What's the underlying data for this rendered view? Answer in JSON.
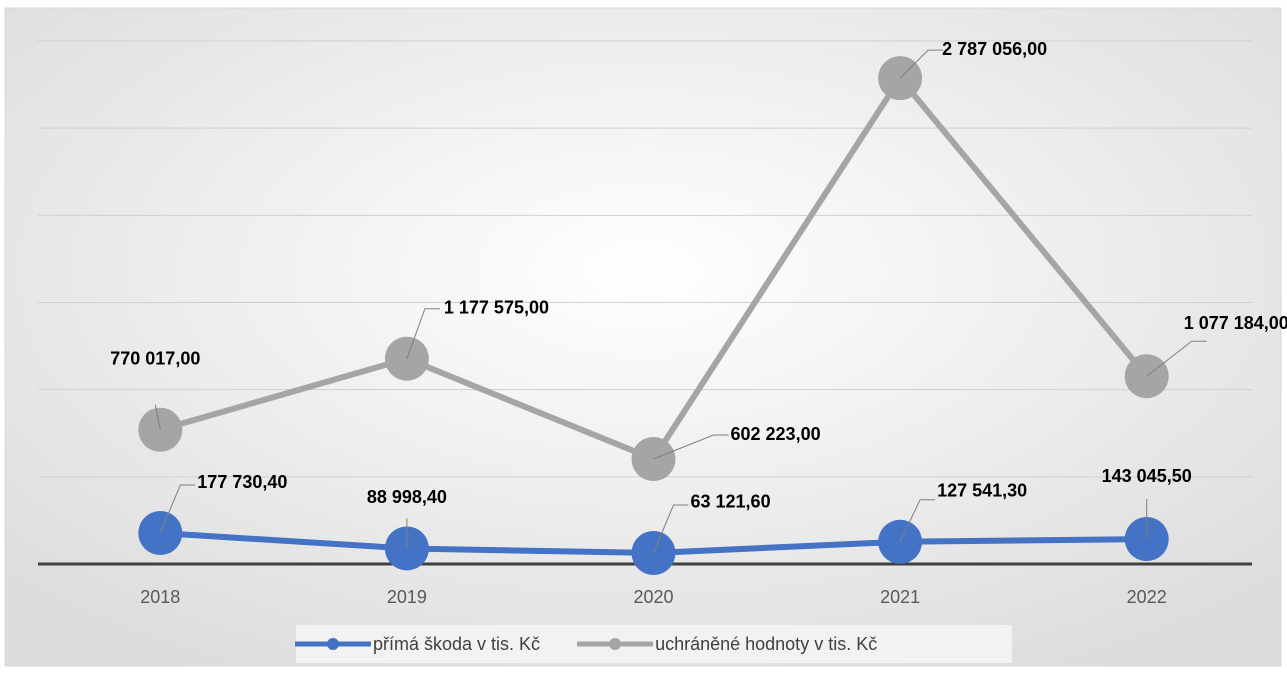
{
  "chart_data": {
    "type": "line",
    "categories": [
      "2018",
      "2019",
      "2020",
      "2021",
      "2022"
    ],
    "series": [
      {
        "name": "přímá škoda v tis. Kč",
        "color": "#4472c4",
        "values": [
          177730.4,
          88998.4,
          63121.6,
          127541.3,
          143045.5
        ],
        "value_labels": [
          "177 730,40",
          "88 998,40",
          "63 121,60",
          "127 541,30",
          "143 045,50"
        ]
      },
      {
        "name": "uchráněné hodnoty v tis. Kč",
        "color": "#a5a5a5",
        "values": [
          770017,
          1177575,
          602223,
          2787056,
          1077184
        ],
        "value_labels": [
          "770 017,00",
          "1 177 575,00",
          "602 223,00",
          "2 787 056,00",
          "1 077 184,00"
        ]
      }
    ],
    "ylim": [
      0,
      3000000
    ],
    "yticks": [
      0,
      500000,
      1000000,
      1500000,
      2000000,
      2500000,
      3000000
    ],
    "grid": true,
    "legend": "bottom"
  }
}
